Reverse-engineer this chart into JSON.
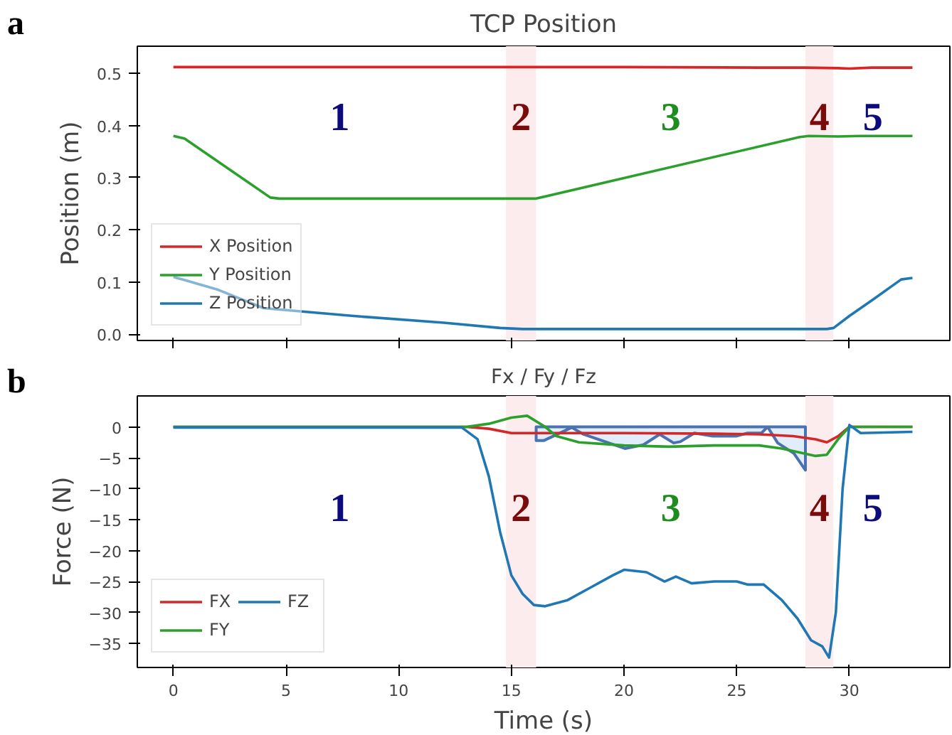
{
  "chart_data": [
    {
      "type": "line",
      "title": "TCP Position",
      "ylabel": "Position (m)",
      "xlim": [
        -1.6,
        34.46
      ],
      "xticks": [
        0,
        5,
        10,
        15,
        20,
        25,
        30
      ],
      "ylim": [
        -0.012,
        0.552
      ],
      "yticks": [
        {
          "value": 0,
          "label": "0.0"
        },
        0.1,
        0.2,
        0.3,
        0.4,
        0.5
      ],
      "tick_labels": "y",
      "grid": false,
      "legend": "bottom left",
      "series": [
        {
          "name": "X Position",
          "color": "#d62728",
          "x": [
            0,
            10,
            20,
            26,
            28,
            29.5,
            30,
            31,
            32.8
          ],
          "values": [
            0.512,
            0.512,
            0.512,
            0.511,
            0.511,
            0.51,
            0.509,
            0.511,
            0.511
          ]
        },
        {
          "name": "Y Position",
          "color": "#2ca02c",
          "x": [
            0,
            0.5,
            4.3,
            4.7,
            15,
            16.1,
            27.8,
            28.2,
            29.5,
            30.5,
            32.8
          ],
          "values": [
            0.38,
            0.375,
            0.262,
            0.26,
            0.26,
            0.26,
            0.378,
            0.38,
            0.379,
            0.38,
            0.38
          ]
        },
        {
          "name": "Z Position",
          "color": "#1f77b4",
          "x": [
            0,
            2,
            4,
            8,
            12,
            14.5,
            15.5,
            20,
            25,
            29,
            29.3,
            30,
            31,
            32.3,
            32.8
          ],
          "values": [
            0.11,
            0.085,
            0.05,
            0.035,
            0.022,
            0.012,
            0.01,
            0.01,
            0.01,
            0.01,
            0.012,
            0.035,
            0.065,
            0.105,
            0.108
          ]
        }
      ],
      "bands": [
        {
          "axis": "x",
          "from": 14.76,
          "to": 16.1,
          "color": "#fdecee"
        },
        {
          "axis": "x",
          "from": 28.05,
          "to": 29.29,
          "color": "#fdecee"
        }
      ],
      "annotations": [
        "a",
        "1",
        "2",
        "3",
        "4",
        "5"
      ]
    },
    {
      "type": "line",
      "title": "Fx / Fy / Fz",
      "xlabel": "Time (s)",
      "ylabel": "Force (N)",
      "xlim": [
        -1.6,
        34.46
      ],
      "xticks": [
        0,
        5,
        10,
        15,
        20,
        25,
        30
      ],
      "ylim": [
        -38.9,
        5.0
      ],
      "yticks": [
        {
          "value": 0,
          "label": "0"
        },
        {
          "value": -5,
          "label": "−5"
        },
        {
          "value": -10,
          "label": "−10"
        },
        {
          "value": -15,
          "label": "−15"
        },
        {
          "value": -20,
          "label": "−20"
        },
        {
          "value": -25,
          "label": "−25"
        },
        {
          "value": -30,
          "label": "−30"
        },
        {
          "value": -35,
          "label": "−35"
        }
      ],
      "grid": false,
      "legend": "bottom left",
      "series": [
        {
          "name": "FX",
          "color": "#d62728",
          "x": [
            0,
            13,
            14,
            15,
            16,
            20,
            24,
            26,
            27.5,
            28.5,
            29,
            29.5,
            30,
            32.8
          ],
          "values": [
            0,
            0,
            -0.3,
            -1,
            -1,
            -1,
            -1.1,
            -1.2,
            -1.5,
            -2,
            -2.5,
            -1.5,
            0,
            0
          ]
        },
        {
          "name": "FY",
          "color": "#2ca02c",
          "x": [
            0,
            13,
            14,
            15,
            15.7,
            16.5,
            17,
            18,
            20,
            22,
            24,
            26,
            27,
            28,
            28.5,
            29,
            29.5,
            30,
            32.8
          ],
          "values": [
            0,
            0,
            0.5,
            1.5,
            1.8,
            0,
            -1.5,
            -2.5,
            -3,
            -3.2,
            -3,
            -3,
            -3.5,
            -4.3,
            -4.7,
            -4.5,
            -2,
            0,
            0
          ]
        },
        {
          "name": "FZ",
          "color": "#1f77b4",
          "x": [
            0,
            12.8,
            13.5,
            14,
            14.5,
            15,
            15.5,
            16,
            16.5,
            17.5,
            18.5,
            19.5,
            20,
            21,
            21.8,
            22.3,
            23,
            24,
            25,
            25.5,
            26.2,
            27,
            27.7,
            28.3,
            28.8,
            29.1,
            29.4,
            29.7,
            30,
            30.5,
            32.8
          ],
          "values": [
            -0.1,
            -0.1,
            -2,
            -8,
            -17,
            -24,
            -27,
            -28.8,
            -29,
            -28,
            -26,
            -24,
            -23.1,
            -23.5,
            -25,
            -24.2,
            -25.3,
            -25,
            -25,
            -25.5,
            -25.5,
            -28,
            -31,
            -34.5,
            -35.5,
            -37.3,
            -30,
            -10,
            0.3,
            -1,
            -0.8
          ]
        },
        {
          "type": "area",
          "color": "#4a72b0",
          "x": [
            16.1,
            16.45,
            17.68,
            18.2,
            19.0,
            20.04,
            20.86,
            21.58,
            22.2,
            22.5,
            23.12,
            23.94,
            24.97,
            25.48,
            26.1,
            26.37,
            26.82,
            27.54,
            28.05
          ],
          "values": [
            -2.2,
            -2.2,
            -0.1,
            -1.2,
            -2.2,
            -3.5,
            -2.9,
            -1.2,
            -2.6,
            -2.4,
            -1.0,
            -1.5,
            -1.5,
            -1.0,
            -1.0,
            0,
            -2.6,
            -4.3,
            -7.0
          ]
        }
      ],
      "bands": [
        {
          "axis": "x",
          "from": 14.76,
          "to": 16.1,
          "color": "#fdecee"
        },
        {
          "axis": "x",
          "from": 28.05,
          "to": 29.29,
          "color": "#fdecee"
        }
      ],
      "annotations": [
        "b",
        "1",
        "2",
        "3",
        "4",
        "5"
      ]
    }
  ]
}
